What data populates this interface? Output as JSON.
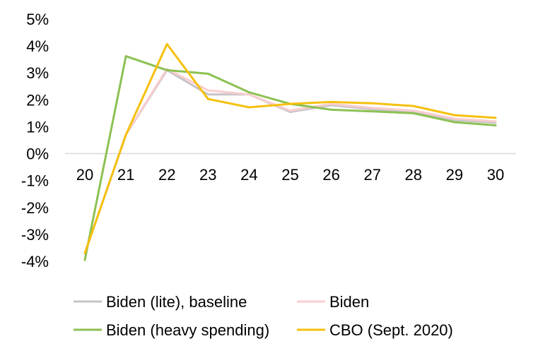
{
  "chart_data": {
    "type": "line",
    "x": [
      "20",
      "21",
      "22",
      "23",
      "24",
      "25",
      "26",
      "27",
      "28",
      "29",
      "30"
    ],
    "y_ticks": [
      "5%",
      "4%",
      "3%",
      "2%",
      "1%",
      "0%",
      "-1%",
      "-2%",
      "-3%",
      "-4%"
    ],
    "ylim": [
      -4,
      5
    ],
    "grid": false,
    "legend_position": "bottom",
    "series": [
      {
        "name": "Biden (lite), baseline",
        "color": "#c8c3c8",
        "values": [
          -3.7,
          0.7,
          3.1,
          2.2,
          2.2,
          1.55,
          1.8,
          1.65,
          1.55,
          1.25,
          1.15
        ]
      },
      {
        "name": "Biden",
        "color": "#f8cece",
        "values": [
          -3.7,
          0.7,
          3.15,
          2.35,
          2.2,
          1.6,
          1.85,
          1.7,
          1.6,
          1.3,
          1.2
        ]
      },
      {
        "name": "Biden (heavy spending)",
        "color": "#8cc152",
        "values": [
          -3.95,
          3.62,
          3.1,
          2.97,
          2.28,
          1.85,
          1.63,
          1.57,
          1.5,
          1.17,
          1.05
        ]
      },
      {
        "name": "CBO (Sept. 2020)",
        "color": "#f5c00e",
        "values": [
          -3.7,
          0.7,
          4.07,
          2.03,
          1.72,
          1.85,
          1.92,
          1.87,
          1.77,
          1.43,
          1.33
        ]
      }
    ]
  }
}
